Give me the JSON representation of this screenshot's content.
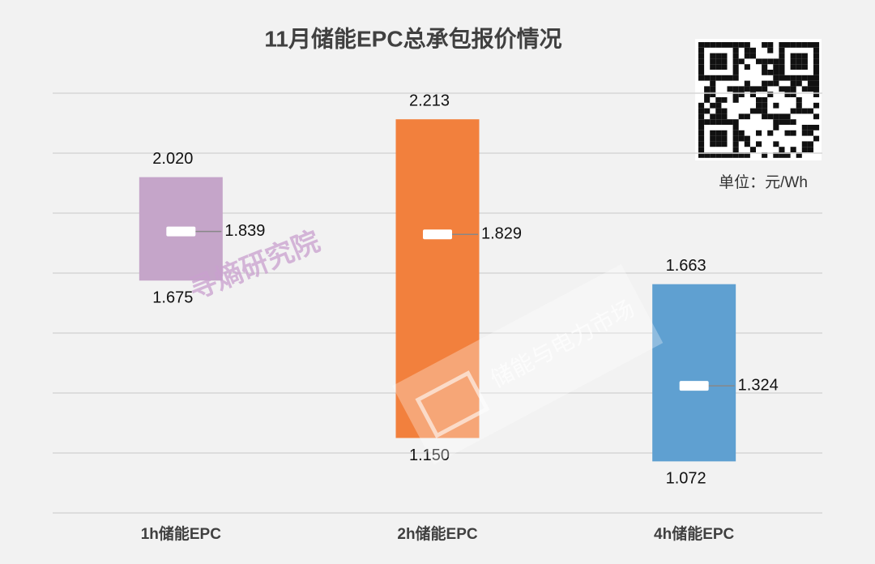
{
  "chart_data": {
    "type": "floating-range",
    "title": "11月储能EPC总承包报价情况",
    "unit": "单位：元/Wh",
    "watermarks": [
      "寻熵研究院",
      "储能与电力市场"
    ],
    "categories": [
      "1h储能EPC",
      "2h储能EPC",
      "4h储能EPC"
    ],
    "colors": [
      "#c5a5c9",
      "#f2803d",
      "#5fa0d1"
    ],
    "high": [
      2.02,
      2.213,
      1.663
    ],
    "high_labels": [
      "2.020",
      "2.213",
      "1.663"
    ],
    "low": [
      1.675,
      1.15,
      1.072
    ],
    "low_labels": [
      "1.675",
      "1.150",
      "1.072"
    ],
    "mid": [
      1.839,
      1.829,
      1.324
    ],
    "ylim": [
      0.9,
      2.3
    ],
    "yticks": [
      0.9,
      1.1,
      1.3,
      1.5,
      1.7,
      1.9,
      2.1,
      2.3
    ],
    "grid": true
  }
}
